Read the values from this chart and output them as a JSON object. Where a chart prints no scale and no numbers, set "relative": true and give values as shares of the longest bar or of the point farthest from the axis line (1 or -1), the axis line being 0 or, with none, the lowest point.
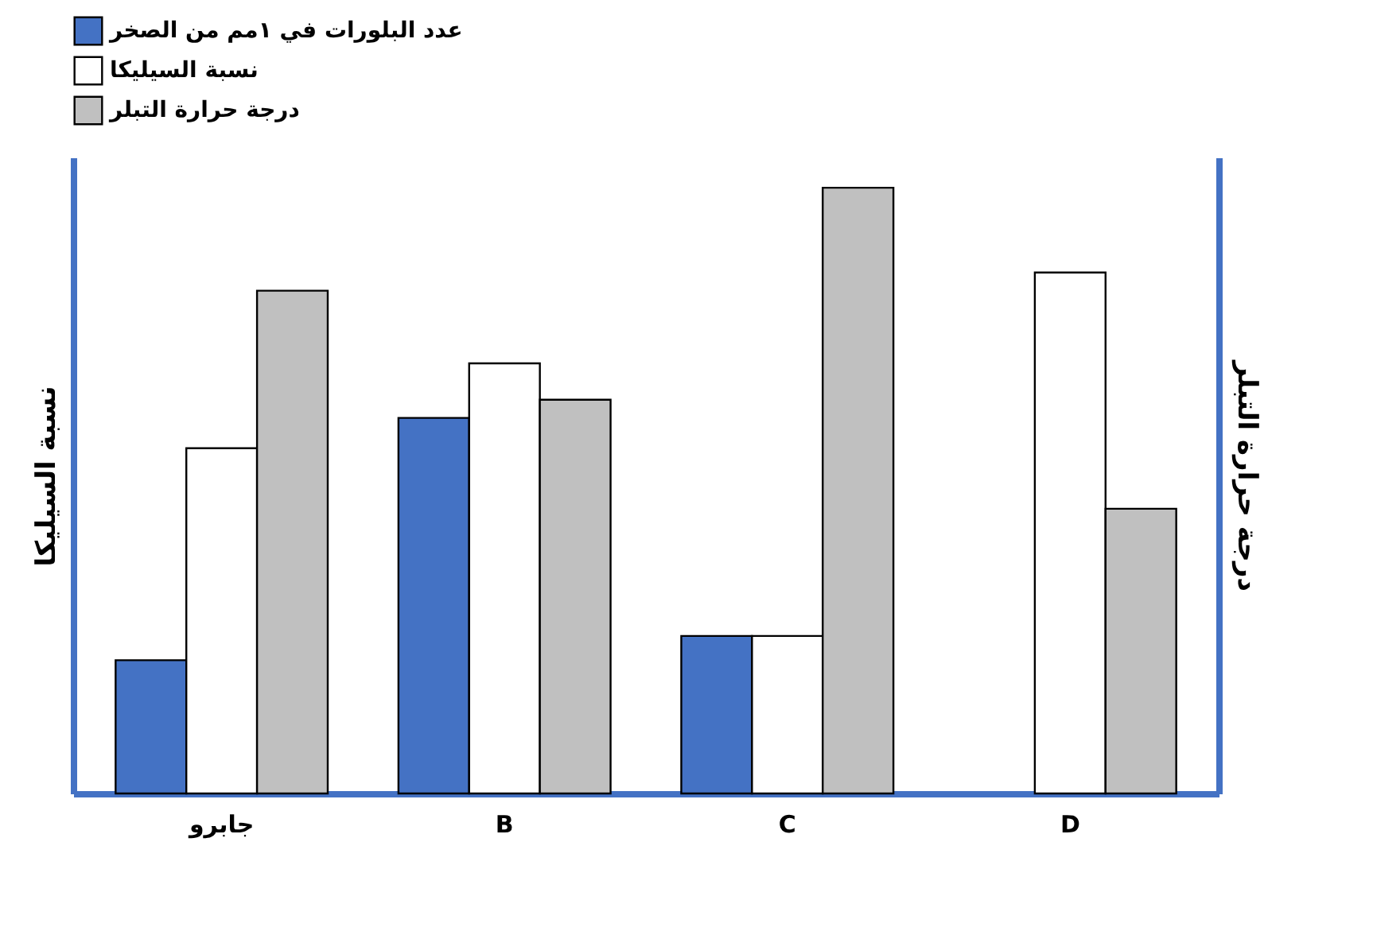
{
  "chart_data": {
    "type": "bar",
    "relative": true,
    "categories": [
      "جابرو",
      "B",
      "C",
      "D"
    ],
    "ylabel": "نسبة السيليكا",
    "y2label": "درجة حرارة التبلر",
    "legend": "top",
    "series": [
      {
        "name": "عدد البلورات في ١مم من الصخر",
        "color": "#4472c4",
        "values": [
          0.22,
          0.62,
          0.26,
          null
        ]
      },
      {
        "name": "نسبة السيليكا",
        "color": "#ffffff",
        "values": [
          0.57,
          0.71,
          0.26,
          0.86
        ]
      },
      {
        "name": "درجة حرارة التبلر",
        "color": "#c0c0c0",
        "values": [
          0.83,
          0.65,
          1,
          0.47
        ]
      }
    ]
  }
}
